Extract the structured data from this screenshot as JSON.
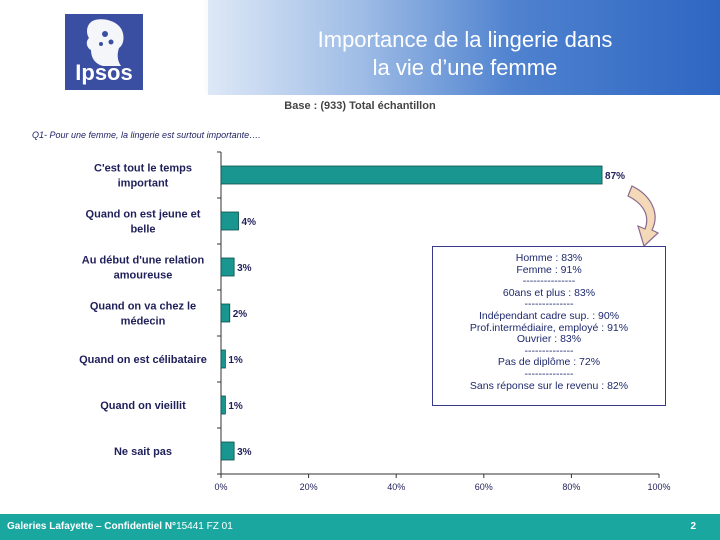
{
  "header": {
    "logo_text": "Ipsos",
    "title_line1": "Importance de la lingerie dans",
    "title_line2": "la vie d’une femme"
  },
  "base_text": "Base : (933) Total  échantillon",
  "question_text": "Q1- Pour une femme, la lingerie est surtout importante….",
  "chart_data": {
    "type": "bar",
    "orientation": "horizontal",
    "categories": [
      [
        "C'est tout le temps",
        "important"
      ],
      [
        "Quand on est jeune et",
        "belle"
      ],
      [
        "Au début d'une relation",
        "amoureuse"
      ],
      [
        "Quand on va chez le",
        "médecin"
      ],
      [
        "Quand on est célibataire"
      ],
      [
        "Quand on vieillit"
      ],
      [
        "Ne sait pas"
      ]
    ],
    "values": [
      87,
      4,
      3,
      2,
      1,
      1,
      3
    ],
    "value_labels": [
      "87%",
      "4%",
      "3%",
      "2%",
      "1%",
      "1%",
      "3%"
    ],
    "xlim": [
      0,
      100
    ],
    "x_ticks": [
      "0%",
      "20%",
      "40%",
      "60%",
      "80%",
      "100%"
    ],
    "bar_color": "#1a9690",
    "grid": false
  },
  "note_box": {
    "lines": [
      "Homme : 83%",
      "Femme : 91%",
      "---------------",
      "60ans et plus : 83%",
      "--------------",
      "Indépendant cadre sup. : 90%",
      "Prof.intermédiaire, employé : 91%",
      "Ouvrier : 83%",
      "--------------",
      "Pas de diplôme : 72%",
      "--------------",
      "Sans réponse sur le revenu : 82%"
    ]
  },
  "footer": {
    "text_bold": "Galeries Lafayette – Confidentiel N°",
    "text_normal": "15441 FZ 01",
    "page_number": "2"
  },
  "colors": {
    "footer_bg": "#1aa7a0",
    "arrow_fill": "#f3d9b8",
    "arrow_stroke": "#8b6a8f"
  }
}
